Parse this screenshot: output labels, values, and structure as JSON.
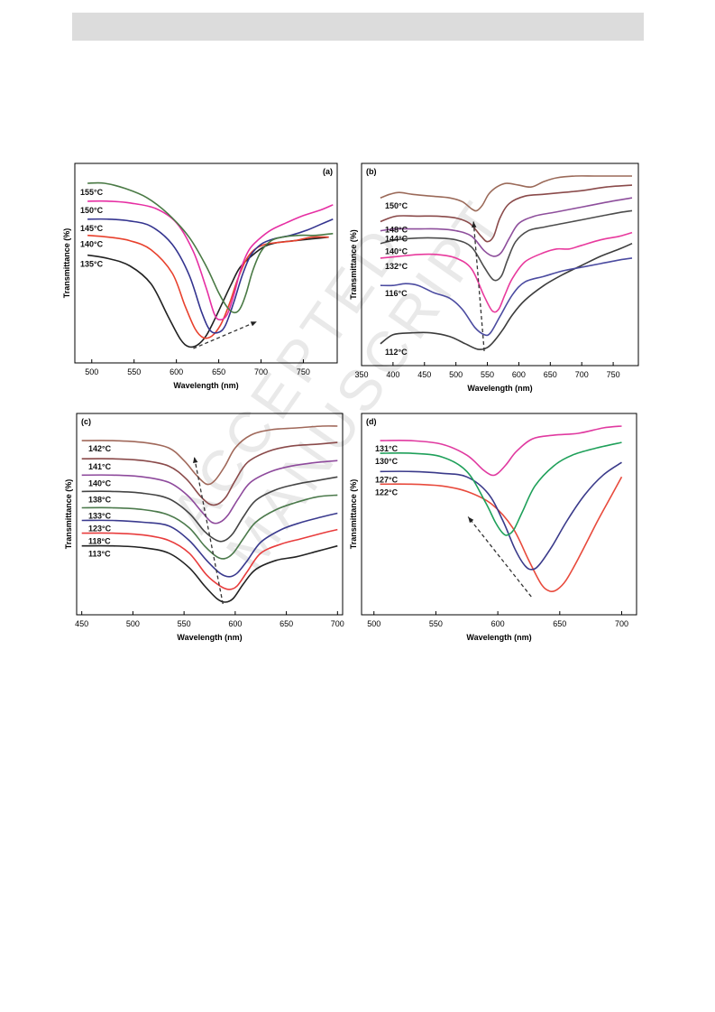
{
  "watermark": "ACCEPTED MANUSCRIPT",
  "chart_data": [
    {
      "type": "line",
      "panel_label": "(a)",
      "xlabel": "Wavelength (nm)",
      "ylabel": "Transmittance (%)",
      "xlim": [
        480,
        790
      ],
      "xticks": [
        500,
        550,
        600,
        650,
        700,
        750
      ],
      "arrow": {
        "from": [
          620,
          0.04
        ],
        "to": [
          695,
          0.19
        ]
      },
      "series": [
        {
          "name": "135°C",
          "color": "#222222",
          "x": [
            495,
            520,
            545,
            570,
            590,
            605,
            615,
            625,
            635,
            645,
            655,
            665,
            675,
            690,
            705,
            720,
            740,
            760,
            780
          ],
          "y": [
            0.56,
            0.54,
            0.5,
            0.4,
            0.22,
            0.09,
            0.05,
            0.06,
            0.11,
            0.2,
            0.3,
            0.4,
            0.49,
            0.56,
            0.61,
            0.63,
            0.64,
            0.65,
            0.66
          ]
        },
        {
          "name": "140°C",
          "color": "#e8412d",
          "x": [
            495,
            520,
            545,
            570,
            595,
            610,
            622,
            632,
            642,
            652,
            662,
            672,
            682,
            692,
            705,
            720,
            740,
            760,
            780
          ],
          "y": [
            0.67,
            0.66,
            0.64,
            0.59,
            0.46,
            0.28,
            0.15,
            0.1,
            0.11,
            0.17,
            0.28,
            0.42,
            0.53,
            0.59,
            0.62,
            0.63,
            0.64,
            0.66,
            0.66
          ]
        },
        {
          "name": "145°C",
          "color": "#34348f",
          "x": [
            495,
            520,
            545,
            570,
            595,
            615,
            630,
            640,
            650,
            658,
            668,
            678,
            688,
            700,
            715,
            735,
            755,
            770,
            785
          ],
          "y": [
            0.76,
            0.76,
            0.75,
            0.72,
            0.62,
            0.45,
            0.24,
            0.14,
            0.13,
            0.17,
            0.3,
            0.45,
            0.56,
            0.62,
            0.65,
            0.67,
            0.7,
            0.73,
            0.76
          ]
        },
        {
          "name": "150°C",
          "color": "#e62fa3",
          "x": [
            495,
            520,
            545,
            575,
            600,
            620,
            635,
            645,
            652,
            660,
            668,
            676,
            686,
            698,
            712,
            730,
            750,
            770,
            785
          ],
          "y": [
            0.86,
            0.86,
            0.85,
            0.82,
            0.74,
            0.58,
            0.38,
            0.23,
            0.2,
            0.23,
            0.34,
            0.48,
            0.59,
            0.65,
            0.7,
            0.74,
            0.78,
            0.81,
            0.84
          ]
        },
        {
          "name": "155°C",
          "color": "#4a7a45",
          "x": [
            495,
            515,
            540,
            565,
            590,
            615,
            635,
            650,
            660,
            668,
            675,
            682,
            690,
            700,
            712,
            725,
            745,
            765,
            785
          ],
          "y": [
            0.96,
            0.96,
            0.93,
            0.88,
            0.79,
            0.66,
            0.5,
            0.35,
            0.27,
            0.24,
            0.26,
            0.34,
            0.47,
            0.58,
            0.64,
            0.66,
            0.67,
            0.67,
            0.68
          ]
        }
      ]
    },
    {
      "type": "line",
      "panel_label": "(b)",
      "xlabel": "Wavelength (nm)",
      "ylabel": "Transmittance (%)",
      "xlim": [
        350,
        790
      ],
      "xticks": [
        350,
        400,
        450,
        500,
        550,
        600,
        650,
        700,
        750
      ],
      "arrow": {
        "from": [
          545,
          0.04
        ],
        "to": [
          528,
          0.75
        ]
      },
      "series": [
        {
          "name": "112°C",
          "color": "#3c3c3c",
          "x": [
            380,
            400,
            430,
            460,
            490,
            515,
            535,
            550,
            562,
            575,
            590,
            610,
            640,
            670,
            700,
            730,
            760,
            780
          ],
          "y": [
            0.08,
            0.13,
            0.14,
            0.14,
            0.12,
            0.08,
            0.05,
            0.06,
            0.1,
            0.16,
            0.24,
            0.32,
            0.4,
            0.46,
            0.51,
            0.56,
            0.6,
            0.63
          ]
        },
        {
          "name": "116°C",
          "color": "#4b4ba0",
          "x": [
            380,
            400,
            420,
            440,
            465,
            490,
            510,
            530,
            545,
            555,
            570,
            590,
            610,
            640,
            670,
            700,
            730,
            760,
            780
          ],
          "y": [
            0.4,
            0.4,
            0.41,
            0.4,
            0.36,
            0.33,
            0.27,
            0.17,
            0.13,
            0.14,
            0.23,
            0.35,
            0.42,
            0.45,
            0.48,
            0.5,
            0.52,
            0.54,
            0.55
          ]
        },
        {
          "name": "132°C",
          "color": "#e83a9d",
          "x": [
            380,
            410,
            440,
            470,
            500,
            525,
            545,
            558,
            568,
            578,
            590,
            610,
            640,
            660,
            680,
            700,
            730,
            760,
            780
          ],
          "y": [
            0.55,
            0.56,
            0.57,
            0.57,
            0.55,
            0.49,
            0.34,
            0.26,
            0.27,
            0.35,
            0.44,
            0.53,
            0.58,
            0.6,
            0.6,
            0.62,
            0.65,
            0.67,
            0.69
          ]
        },
        {
          "name": "140°C",
          "color": "#4d4d4d",
          "x": [
            380,
            405,
            440,
            470,
            500,
            525,
            545,
            560,
            572,
            582,
            595,
            615,
            640,
            670,
            700,
            730,
            760,
            780
          ],
          "y": [
            0.63,
            0.65,
            0.66,
            0.66,
            0.65,
            0.61,
            0.5,
            0.43,
            0.45,
            0.54,
            0.64,
            0.7,
            0.72,
            0.74,
            0.76,
            0.78,
            0.8,
            0.81
          ]
        },
        {
          "name": "144°C",
          "color": "#8e4f9c",
          "x": [
            380,
            405,
            440,
            470,
            500,
            525,
            545,
            560,
            572,
            585,
            600,
            625,
            655,
            685,
            715,
            745,
            780
          ],
          "y": [
            0.7,
            0.71,
            0.71,
            0.71,
            0.7,
            0.67,
            0.59,
            0.56,
            0.58,
            0.66,
            0.74,
            0.78,
            0.8,
            0.82,
            0.84,
            0.86,
            0.88
          ]
        },
        {
          "name": "148°C",
          "color": "#8a4a4a",
          "x": [
            380,
            405,
            440,
            470,
            500,
            522,
            540,
            550,
            560,
            570,
            585,
            610,
            640,
            670,
            700,
            740,
            780
          ],
          "y": [
            0.75,
            0.78,
            0.78,
            0.78,
            0.77,
            0.74,
            0.67,
            0.64,
            0.67,
            0.77,
            0.85,
            0.89,
            0.9,
            0.91,
            0.92,
            0.94,
            0.95
          ]
        },
        {
          "name": "150°C",
          "color": "#9b6a59",
          "x": [
            380,
            395,
            410,
            430,
            460,
            490,
            510,
            525,
            533,
            542,
            552,
            565,
            580,
            600,
            620,
            640,
            660,
            690,
            720,
            750,
            780
          ],
          "y": [
            0.88,
            0.9,
            0.91,
            0.9,
            0.89,
            0.88,
            0.86,
            0.82,
            0.81,
            0.84,
            0.9,
            0.94,
            0.96,
            0.95,
            0.94,
            0.97,
            0.99,
            1.0,
            1.0,
            1.0,
            1.0
          ]
        }
      ]
    },
    {
      "type": "line",
      "panel_label": "(c)",
      "xlabel": "Wavelength (nm)",
      "ylabel": "Transmittance (%)",
      "xlim": [
        445,
        705
      ],
      "xticks": [
        450,
        500,
        550,
        600,
        650,
        700
      ],
      "arrow": {
        "from": [
          588,
          0.02
        ],
        "to": [
          560,
          0.83
        ]
      },
      "series": [
        {
          "name": "113°C",
          "color": "#222222",
          "x": [
            450,
            480,
            510,
            535,
            555,
            570,
            582,
            590,
            598,
            608,
            620,
            640,
            660,
            680,
            700
          ],
          "y": [
            0.34,
            0.34,
            0.33,
            0.3,
            0.22,
            0.12,
            0.05,
            0.03,
            0.05,
            0.13,
            0.21,
            0.26,
            0.28,
            0.31,
            0.34
          ]
        },
        {
          "name": "118°C",
          "color": "#e83c3c",
          "x": [
            450,
            480,
            510,
            535,
            555,
            572,
            585,
            594,
            602,
            612,
            625,
            645,
            665,
            685,
            700
          ],
          "y": [
            0.41,
            0.41,
            0.4,
            0.37,
            0.3,
            0.18,
            0.12,
            0.1,
            0.12,
            0.2,
            0.3,
            0.35,
            0.38,
            0.41,
            0.43
          ]
        },
        {
          "name": "123°C",
          "color": "#3a3a8e",
          "x": [
            450,
            480,
            510,
            535,
            555,
            572,
            585,
            594,
            602,
            612,
            625,
            645,
            665,
            685,
            700
          ],
          "y": [
            0.48,
            0.48,
            0.47,
            0.45,
            0.37,
            0.26,
            0.19,
            0.17,
            0.19,
            0.26,
            0.36,
            0.43,
            0.47,
            0.5,
            0.52
          ]
        },
        {
          "name": "133°C",
          "color": "#4c7a4c",
          "x": [
            450,
            480,
            510,
            535,
            555,
            570,
            582,
            590,
            598,
            608,
            620,
            640,
            660,
            680,
            700
          ],
          "y": [
            0.55,
            0.55,
            0.54,
            0.51,
            0.44,
            0.34,
            0.28,
            0.27,
            0.3,
            0.38,
            0.47,
            0.54,
            0.58,
            0.61,
            0.62
          ]
        },
        {
          "name": "138°C",
          "color": "#454545",
          "x": [
            450,
            480,
            510,
            535,
            555,
            570,
            582,
            590,
            598,
            608,
            620,
            640,
            660,
            680,
            700
          ],
          "y": [
            0.64,
            0.64,
            0.63,
            0.6,
            0.52,
            0.42,
            0.37,
            0.37,
            0.41,
            0.5,
            0.59,
            0.65,
            0.68,
            0.7,
            0.72
          ]
        },
        {
          "name": "140°C",
          "color": "#8e4a9c",
          "x": [
            450,
            480,
            510,
            535,
            553,
            567,
            577,
            585,
            593,
            603,
            615,
            635,
            655,
            680,
            700
          ],
          "y": [
            0.73,
            0.73,
            0.72,
            0.69,
            0.62,
            0.53,
            0.47,
            0.47,
            0.51,
            0.6,
            0.69,
            0.75,
            0.78,
            0.8,
            0.81
          ]
        },
        {
          "name": "141°C",
          "color": "#8a4a4a",
          "x": [
            450,
            480,
            510,
            535,
            552,
            565,
            575,
            583,
            591,
            600,
            612,
            632,
            655,
            680,
            700
          ],
          "y": [
            0.82,
            0.82,
            0.81,
            0.78,
            0.71,
            0.62,
            0.57,
            0.57,
            0.61,
            0.7,
            0.8,
            0.86,
            0.89,
            0.9,
            0.91
          ]
        },
        {
          "name": "142°C",
          "color": "#a0685a",
          "x": [
            450,
            480,
            510,
            535,
            550,
            562,
            572,
            580,
            590,
            600,
            615,
            635,
            660,
            685,
            700
          ],
          "y": [
            0.92,
            0.92,
            0.91,
            0.88,
            0.81,
            0.73,
            0.68,
            0.7,
            0.78,
            0.88,
            0.95,
            0.98,
            0.99,
            1.0,
            1.0
          ]
        }
      ]
    },
    {
      "type": "line",
      "panel_label": "(d)",
      "xlabel": "Wavelength (nm)",
      "ylabel": "Transmittance (%)",
      "xlim": [
        490,
        712
      ],
      "xticks": [
        500,
        550,
        600,
        650,
        700
      ],
      "arrow": {
        "from": [
          627,
          0.06
        ],
        "to": [
          576,
          0.5
        ]
      },
      "series": [
        {
          "name": "122°C",
          "color": "#e84a3c",
          "x": [
            505,
            530,
            555,
            575,
            595,
            612,
            625,
            635,
            642,
            648,
            655,
            665,
            680,
            692,
            700
          ],
          "y": [
            0.68,
            0.68,
            0.67,
            0.64,
            0.57,
            0.44,
            0.26,
            0.13,
            0.09,
            0.1,
            0.15,
            0.27,
            0.47,
            0.62,
            0.72
          ]
        },
        {
          "name": "127°C",
          "color": "#3a3a8a",
          "x": [
            505,
            530,
            555,
            575,
            592,
            604,
            614,
            622,
            628,
            634,
            644,
            656,
            670,
            685,
            700
          ],
          "y": [
            0.75,
            0.75,
            0.74,
            0.72,
            0.63,
            0.48,
            0.32,
            0.23,
            0.21,
            0.24,
            0.34,
            0.48,
            0.62,
            0.73,
            0.8
          ]
        },
        {
          "name": "130°C",
          "color": "#1fa05a",
          "x": [
            505,
            530,
            555,
            575,
            590,
            598,
            604,
            608,
            613,
            620,
            630,
            645,
            660,
            680,
            700
          ],
          "y": [
            0.85,
            0.85,
            0.83,
            0.75,
            0.58,
            0.47,
            0.41,
            0.4,
            0.43,
            0.53,
            0.67,
            0.78,
            0.84,
            0.88,
            0.91
          ]
        },
        {
          "name": "131°C",
          "color": "#e03aa0",
          "x": [
            505,
            530,
            555,
            575,
            588,
            595,
            600,
            607,
            615,
            628,
            645,
            665,
            685,
            700
          ],
          "y": [
            0.92,
            0.92,
            0.9,
            0.84,
            0.76,
            0.73,
            0.74,
            0.79,
            0.86,
            0.93,
            0.95,
            0.96,
            0.99,
            1.0
          ]
        }
      ]
    }
  ]
}
